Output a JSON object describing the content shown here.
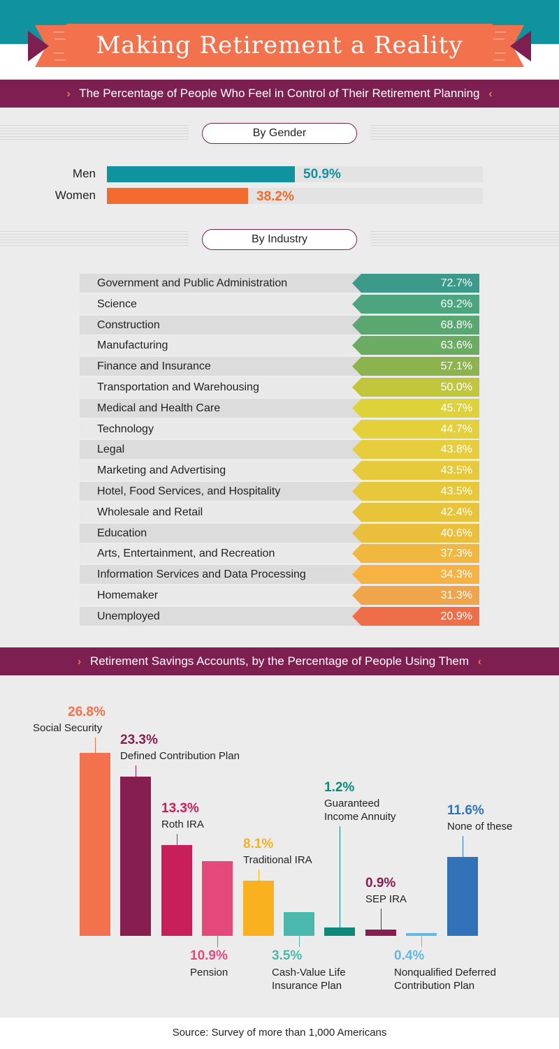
{
  "title": "Making Retirement a Reality",
  "section1": {
    "heading": "The Percentage of People Who Feel in Control of Their Retirement Planning",
    "chevron_left": "›",
    "chevron_right": "‹"
  },
  "gender": {
    "pill": "By Gender",
    "items": [
      {
        "label": "Men",
        "value": 50.9,
        "value_text": "50.9%",
        "color": "#11929f"
      },
      {
        "label": "Women",
        "value": 38.2,
        "value_text": "38.2%",
        "color": "#f26a2e"
      }
    ]
  },
  "industry": {
    "pill": "By Industry",
    "items": [
      {
        "label": "Government and Public Administration",
        "value": 72.7,
        "value_text": "72.7%",
        "color": "#3b9a8a"
      },
      {
        "label": "Science",
        "value": 69.2,
        "value_text": "69.2%",
        "color": "#4da57f"
      },
      {
        "label": "Construction",
        "value": 68.8,
        "value_text": "68.8%",
        "color": "#5aa771"
      },
      {
        "label": "Manufacturing",
        "value": 63.6,
        "value_text": "63.6%",
        "color": "#6aac62"
      },
      {
        "label": "Finance and Insurance",
        "value": 57.1,
        "value_text": "57.1%",
        "color": "#8db34e"
      },
      {
        "label": "Transportation and Warehousing",
        "value": 50.0,
        "value_text": "50.0%",
        "color": "#c2c63c"
      },
      {
        "label": "Medical and Health Care",
        "value": 45.7,
        "value_text": "45.7%",
        "color": "#ddd23a"
      },
      {
        "label": "Technology",
        "value": 44.7,
        "value_text": "44.7%",
        "color": "#e3d03b"
      },
      {
        "label": "Legal",
        "value": 43.8,
        "value_text": "43.8%",
        "color": "#e6cd3b"
      },
      {
        "label": "Marketing and Advertising",
        "value": 43.5,
        "value_text": "43.5%",
        "color": "#e6ca3b"
      },
      {
        "label": "Hotel, Food Services, and Hospitality",
        "value": 43.5,
        "value_text": "43.5%",
        "color": "#e7c83b"
      },
      {
        "label": "Wholesale and Retail",
        "value": 42.4,
        "value_text": "42.4%",
        "color": "#e8c43b"
      },
      {
        "label": "Education",
        "value": 40.6,
        "value_text": "40.6%",
        "color": "#eabf3c"
      },
      {
        "label": "Arts, Entertainment, and Recreation",
        "value": 37.3,
        "value_text": "37.3%",
        "color": "#f0b83f"
      },
      {
        "label": "Information Services and Data Processing",
        "value": 34.3,
        "value_text": "34.3%",
        "color": "#f6b343"
      },
      {
        "label": "Homemaker",
        "value": 31.3,
        "value_text": "31.3%",
        "color": "#f0a54a"
      },
      {
        "label": "Unemployed",
        "value": 20.9,
        "value_text": "20.9%",
        "color": "#ee6e48"
      }
    ]
  },
  "section2": {
    "heading": "Retirement Savings Accounts, by the Percentage of People Using Them",
    "chevron_left": "›",
    "chevron_right": "‹"
  },
  "chart_data": {
    "type": "bar",
    "title": "Retirement Savings Accounts, by the Percentage of People Using Them",
    "categories": [
      "Social Security",
      "Defined Contribution Plan",
      "Roth IRA",
      "Pension",
      "Traditional IRA",
      "Cash-Value Life Insurance Plan",
      "Guaranteed Income Annuity",
      "SEP IRA",
      "Nonqualified Deferred Contribution Plan",
      "None of these"
    ],
    "values": [
      26.8,
      23.3,
      13.3,
      10.9,
      8.1,
      3.5,
      1.2,
      0.9,
      0.4,
      11.6
    ],
    "value_labels": [
      "26.8%",
      "23.3%",
      "13.3%",
      "10.9%",
      "8.1%",
      "3.5%",
      "1.2%",
      "0.9%",
      "0.4%",
      "11.6%"
    ],
    "label_lines": [
      [
        "Social Security"
      ],
      [
        "Defined Contribution Plan"
      ],
      [
        "Roth IRA"
      ],
      [
        "Pension"
      ],
      [
        "Traditional IRA"
      ],
      [
        "Cash-Value Life",
        "Insurance Plan"
      ],
      [
        "Guaranteed",
        "Income Annuity"
      ],
      [
        "SEP IRA"
      ],
      [
        "Nonqualified Deferred",
        "Contribution Plan"
      ],
      [
        "None of these"
      ]
    ],
    "colors": [
      "#f2724e",
      "#861f4f",
      "#c81e5a",
      "#e4497c",
      "#f9b11f",
      "#4bb7ad",
      "#0f877a",
      "#861f4f",
      "#62b9e3",
      "#3172b9"
    ],
    "value_colors": [
      "#f2724e",
      "#861f4f",
      "#c81e5a",
      "#e4497c",
      "#f9b11f",
      "#4bb7ad",
      "#0f877a",
      "#861f4f",
      "#62b9e3",
      "#3172b9"
    ],
    "xlabel": "",
    "ylabel": "",
    "ylim": [
      0,
      27
    ],
    "grid": false
  },
  "source": "Source: Survey of more than 1,000 Americans"
}
